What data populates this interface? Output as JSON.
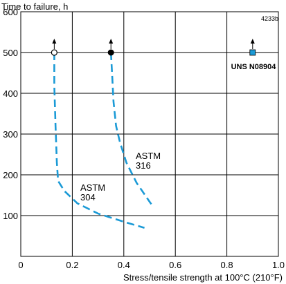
{
  "chart_data": {
    "type": "line",
    "ylabel": "Time to failure, h",
    "xlabel": "Stress/tensile strength at 100°C (210°F)",
    "figure_code": "4233b",
    "xlim": [
      0,
      1.0
    ],
    "ylim": [
      0,
      600
    ],
    "x_ticks": [
      "0",
      "0.2",
      "0.4",
      "0.6",
      "0.8",
      "1.0"
    ],
    "y_ticks": [
      "100",
      "200",
      "300",
      "400",
      "500",
      "600"
    ],
    "grid": true,
    "series_color": "#1b9ad6",
    "series": [
      {
        "name": "ASTM 304",
        "label_lines": [
          "ASTM",
          "304"
        ],
        "marker": "open-circle",
        "runout_at": {
          "x": 0.13,
          "y": 500
        },
        "points": [
          {
            "x": 0.13,
            "y": 500
          },
          {
            "x": 0.13,
            "y": 420
          },
          {
            "x": 0.135,
            "y": 320
          },
          {
            "x": 0.14,
            "y": 230
          },
          {
            "x": 0.145,
            "y": 185
          },
          {
            "x": 0.17,
            "y": 160
          },
          {
            "x": 0.22,
            "y": 130
          },
          {
            "x": 0.3,
            "y": 105
          },
          {
            "x": 0.4,
            "y": 85
          },
          {
            "x": 0.48,
            "y": 70
          }
        ]
      },
      {
        "name": "ASTM 316",
        "label_lines": [
          "ASTM",
          "316"
        ],
        "marker": "filled-circle",
        "runout_at": {
          "x": 0.35,
          "y": 500
        },
        "points": [
          {
            "x": 0.35,
            "y": 500
          },
          {
            "x": 0.355,
            "y": 440
          },
          {
            "x": 0.36,
            "y": 380
          },
          {
            "x": 0.37,
            "y": 320
          },
          {
            "x": 0.385,
            "y": 280
          },
          {
            "x": 0.41,
            "y": 230
          },
          {
            "x": 0.45,
            "y": 180
          },
          {
            "x": 0.51,
            "y": 125
          }
        ]
      },
      {
        "name": "UNS N08904",
        "label_lines": [
          "UNS N08904"
        ],
        "marker": "filled-square",
        "runout_at": {
          "x": 0.9,
          "y": 500
        },
        "points": [
          {
            "x": 0.9,
            "y": 500
          }
        ]
      }
    ]
  }
}
